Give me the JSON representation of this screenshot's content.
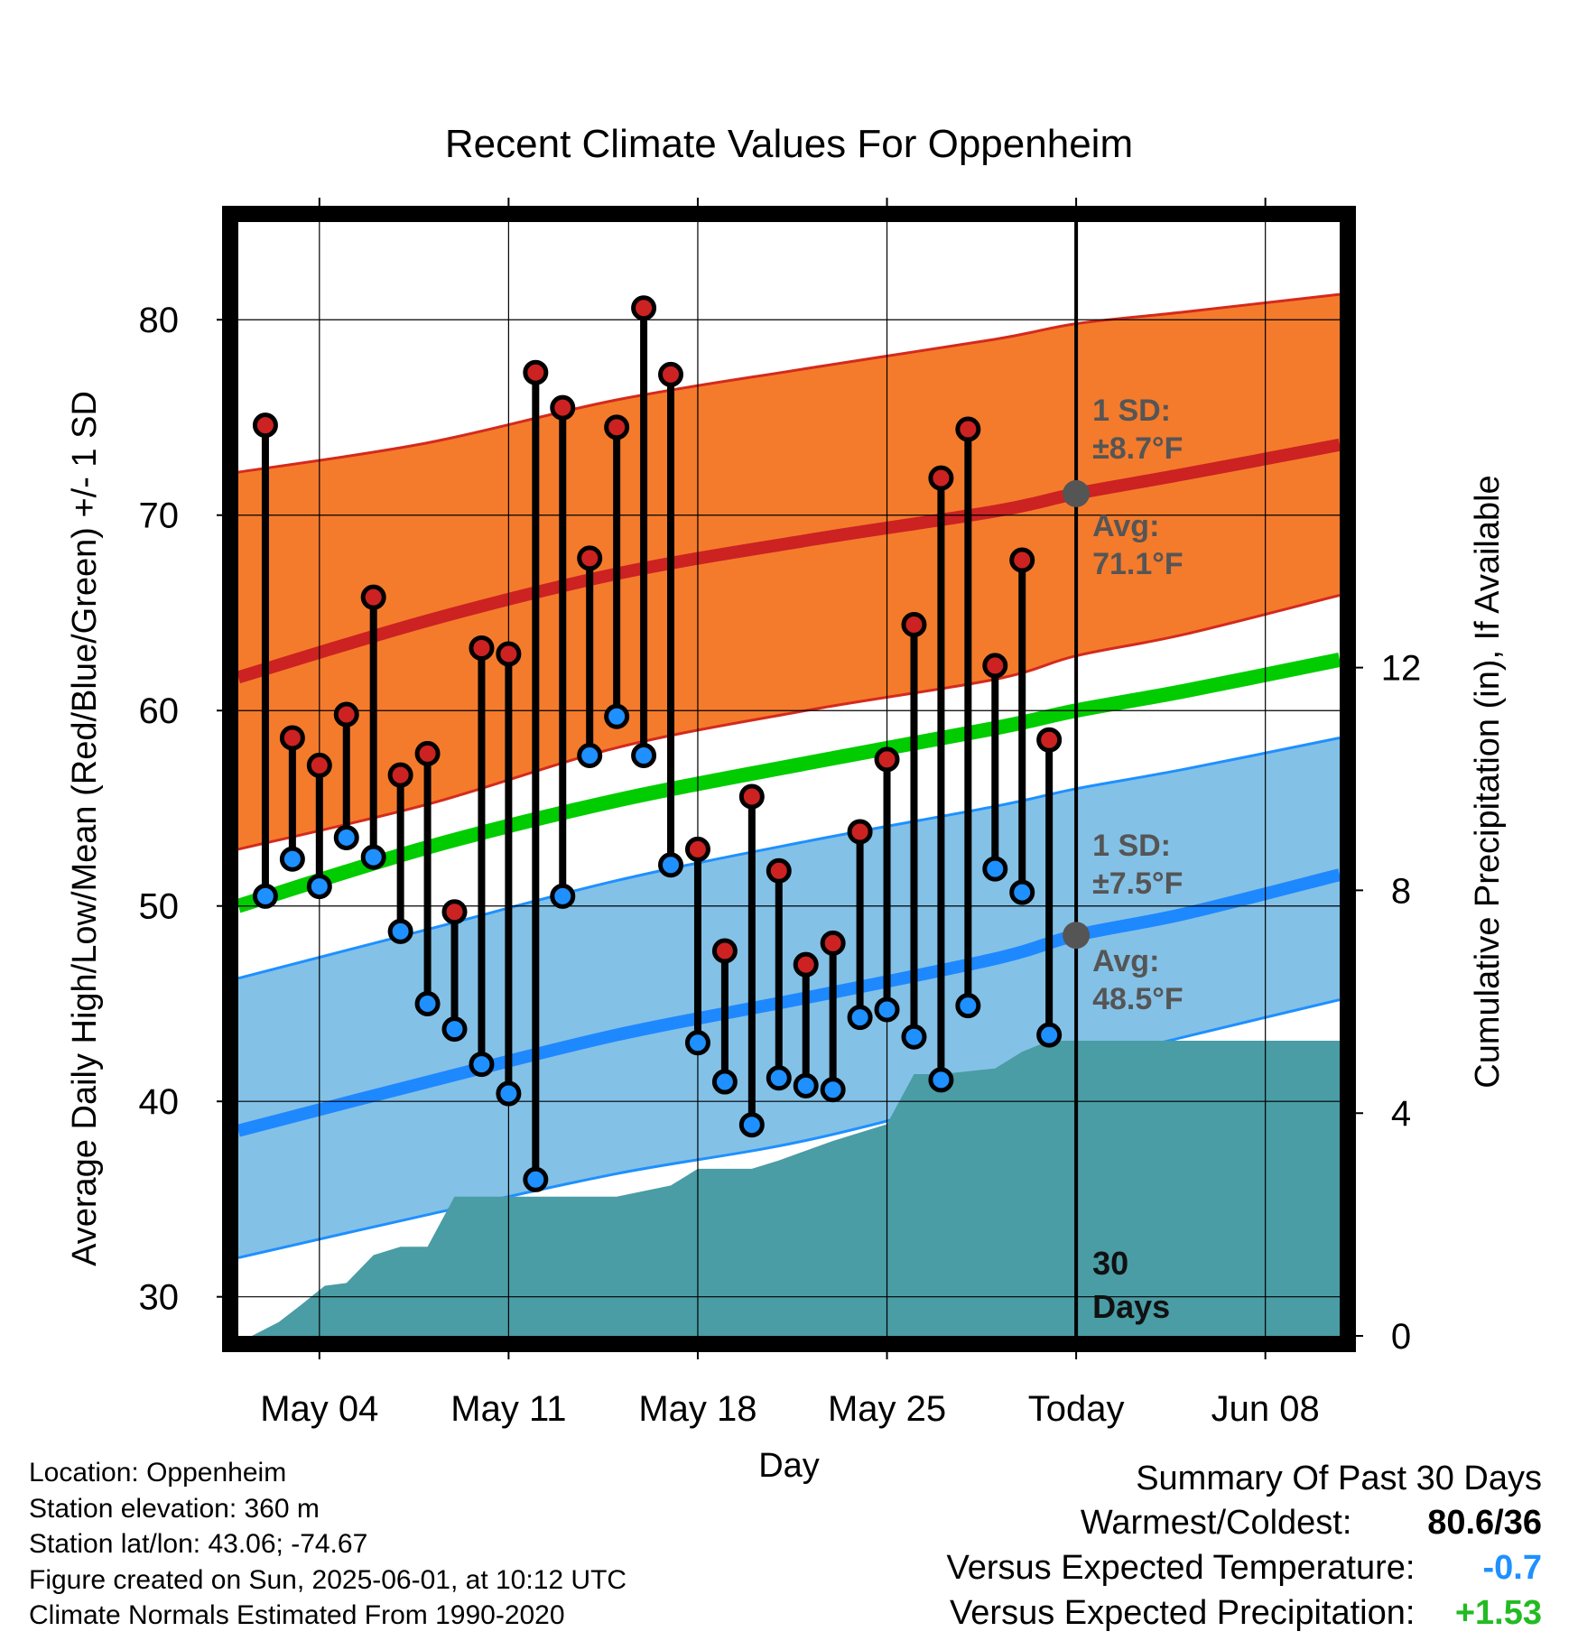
{
  "chart_data": {
    "type": "line",
    "title": "Recent Climate Values For Oppenheim",
    "xlabel": "Day",
    "ylabel": "Average Daily High/Low/Mean (Red/Blue/Green) +/- 1 SD",
    "y2label": "Cumulative Precipitation (in), If Available",
    "ylim": [
      28,
      85
    ],
    "y2lim": [
      0,
      20
    ],
    "yticks": [
      30,
      40,
      50,
      60,
      70,
      80
    ],
    "y2ticks": [
      0,
      4,
      8,
      12
    ],
    "xticks": [
      {
        "day": 4,
        "label": "May 04"
      },
      {
        "day": 11,
        "label": "May 11"
      },
      {
        "day": 18,
        "label": "May 18"
      },
      {
        "day": 25,
        "label": "May 25"
      },
      {
        "day": 32,
        "label": "Today"
      },
      {
        "day": 39,
        "label": "Jun 08"
      }
    ],
    "x_range_days": [
      1.0,
      41.75
    ],
    "today_day": 32,
    "grid": true,
    "days_label_line1": "30",
    "days_label_line2": "Days",
    "normals": {
      "high_mean": [
        [
          1,
          61.7
        ],
        [
          8,
          64.6
        ],
        [
          15,
          67.0
        ],
        [
          22,
          68.7
        ],
        [
          29,
          70.2
        ],
        [
          32,
          71.1
        ],
        [
          36,
          72.1
        ],
        [
          41.75,
          73.6
        ]
      ],
      "high_upper": [
        [
          1,
          72.2
        ],
        [
          8,
          73.7
        ],
        [
          15,
          75.9
        ],
        [
          22,
          77.5
        ],
        [
          29,
          79.0
        ],
        [
          32,
          79.8
        ],
        [
          36,
          80.4
        ],
        [
          41.75,
          81.3
        ]
      ],
      "high_lower": [
        [
          1,
          52.9
        ],
        [
          8,
          55.2
        ],
        [
          15,
          58.1
        ],
        [
          22,
          60.0
        ],
        [
          29,
          61.6
        ],
        [
          32,
          62.8
        ],
        [
          36,
          63.9
        ],
        [
          41.75,
          65.9
        ]
      ],
      "low_mean": [
        [
          1,
          38.5
        ],
        [
          8,
          41.0
        ],
        [
          15,
          43.4
        ],
        [
          22,
          45.3
        ],
        [
          29,
          47.3
        ],
        [
          32,
          48.5
        ],
        [
          36,
          49.6
        ],
        [
          41.75,
          51.6
        ]
      ],
      "low_upper": [
        [
          1,
          46.3
        ],
        [
          8,
          48.8
        ],
        [
          15,
          51.3
        ],
        [
          22,
          53.3
        ],
        [
          29,
          55.1
        ],
        [
          32,
          56.0
        ],
        [
          36,
          57.0
        ],
        [
          41.75,
          58.6
        ]
      ],
      "low_lower": [
        [
          1,
          32.0
        ],
        [
          8,
          34.2
        ],
        [
          15,
          36.3
        ],
        [
          22,
          38.0
        ],
        [
          29,
          40.5
        ],
        [
          32,
          41.9
        ],
        [
          36,
          43.3
        ],
        [
          41.75,
          45.2
        ]
      ],
      "mean": [
        [
          1,
          50.0
        ],
        [
          8,
          53.0
        ],
        [
          15,
          55.4
        ],
        [
          22,
          57.3
        ],
        [
          29,
          59.1
        ],
        [
          32,
          60.0
        ],
        [
          36,
          61.0
        ],
        [
          41.75,
          62.6
        ]
      ]
    },
    "avg_high_dot": 71.1,
    "avg_low_dot": 48.5,
    "colors": {
      "high_band": "#f47b2c",
      "high_band_edge": "#d42a1c",
      "high_mean": "#cc2222",
      "low_band": "#84c1e6",
      "low_band_edge": "#1e90ff",
      "low_mean": "#1e88ff",
      "mean": "#00cc00",
      "precip": "#4a9ca5",
      "high_dot": "#cc2222",
      "low_dot": "#1e90ff",
      "avg_dot": "#555555"
    },
    "daily": {
      "x": [
        "May 02",
        "May 03",
        "May 04",
        "May 05",
        "May 06",
        "May 07",
        "May 08",
        "May 09",
        "May 10",
        "May 11",
        "May 12",
        "May 13",
        "May 14",
        "May 15",
        "May 16",
        "May 17",
        "May 18",
        "May 19",
        "May 20",
        "May 21",
        "May 22",
        "May 23",
        "May 24",
        "May 25",
        "May 26",
        "May 27",
        "May 28",
        "May 29",
        "May 30",
        "May 31"
      ],
      "high": [
        74.6,
        58.6,
        57.2,
        59.8,
        65.8,
        56.7,
        57.8,
        49.7,
        63.2,
        62.9,
        77.3,
        75.5,
        67.8,
        74.5,
        80.6,
        77.2,
        52.9,
        47.7,
        55.6,
        51.8,
        47.0,
        48.1,
        53.8,
        57.5,
        64.4,
        71.9,
        74.4,
        62.3,
        67.7,
        58.5
      ],
      "low": [
        50.5,
        52.4,
        51.0,
        53.5,
        52.5,
        48.7,
        45.0,
        43.7,
        41.9,
        40.4,
        36.0,
        50.5,
        57.7,
        59.7,
        57.7,
        52.1,
        43.0,
        41.0,
        38.8,
        41.2,
        40.8,
        40.6,
        44.3,
        44.7,
        43.3,
        41.1,
        44.9,
        51.9,
        50.7,
        43.4
      ]
    },
    "precip_cumulative": [
      [
        1.5,
        0.0
      ],
      [
        2.5,
        0.25
      ],
      [
        3.3,
        0.55
      ],
      [
        4.2,
        0.9
      ],
      [
        5.0,
        0.95
      ],
      [
        6.0,
        1.45
      ],
      [
        7.0,
        1.6
      ],
      [
        8.0,
        1.6
      ],
      [
        9.0,
        2.5
      ],
      [
        10.0,
        2.5
      ],
      [
        15.0,
        2.5
      ],
      [
        17.0,
        2.7
      ],
      [
        18.0,
        3.0
      ],
      [
        20.0,
        3.0
      ],
      [
        21.0,
        3.15
      ],
      [
        23.0,
        3.5
      ],
      [
        24.0,
        3.65
      ],
      [
        25.0,
        3.8
      ],
      [
        26.0,
        4.7
      ],
      [
        27.0,
        4.7
      ],
      [
        28.0,
        4.75
      ],
      [
        29.0,
        4.8
      ],
      [
        30.0,
        5.1
      ],
      [
        31.0,
        5.3
      ],
      [
        41.75,
        5.3
      ]
    ]
  },
  "annotations": {
    "high_sd_line1": "1 SD:",
    "high_sd_line2": "±8.7°F",
    "high_avg_line1": "Avg:",
    "high_avg_line2": "71.1°F",
    "low_sd_line1": "1 SD:",
    "low_sd_line2": "±7.5°F",
    "low_avg_line1": "Avg:",
    "low_avg_line2": "48.5°F"
  },
  "footer": {
    "location": "Location: Oppenheim",
    "elevation": "Station elevation: 360 m",
    "latlon": "Station lat/lon: 43.06; -74.67",
    "created": "Figure created on Sun, 2025-06-01, at 10:12 UTC",
    "normals": "Climate Normals Estimated From 1990-2020"
  },
  "summary": {
    "title": "Summary Of Past 30 Days",
    "warmest_label": "Warmest/Coldest:",
    "warmest_value": "80.6/36",
    "temp_label": "Versus Expected Temperature:",
    "temp_value": "-0.7",
    "precip_label": "Versus Expected Precipitation:",
    "precip_value": "+1.53"
  }
}
